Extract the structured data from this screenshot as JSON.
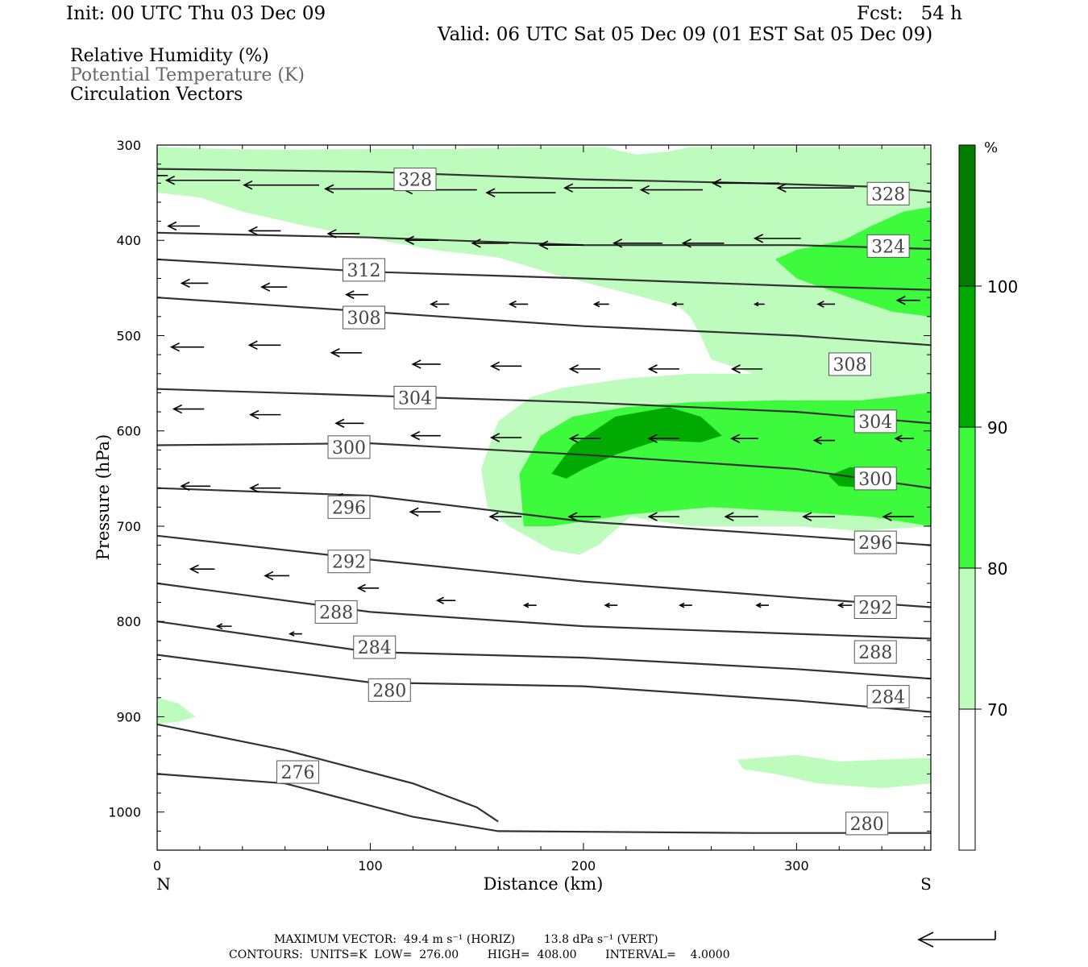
{
  "header": {
    "init": "Init: 00 UTC Thu 03 Dec 09",
    "fcst": "Fcst:   54 h",
    "valid": "Valid: 06 UTC Sat 05 Dec 09 (01 EST Sat 05 Dec 09)"
  },
  "fields": {
    "rh": "Relative Humidity (%)",
    "theta": "Potential Temperature (K)",
    "vectors": "Circulation Vectors"
  },
  "footer": {
    "max_vector": "MAXIMUM VECTOR:  49.4 m s⁻¹ (HORIZ)        13.8 dPa s⁻¹ (VERT)",
    "contours": "CONTOURS:  UNITS=K  LOW=  276.00        HIGH=  408.00        INTERVAL=    4.0000"
  },
  "colors": {
    "rh70": "#bdfcbd",
    "rh80": "#3dfa3d",
    "rh90": "#00aa00",
    "rh100": "#007c00",
    "contour": "#333333"
  },
  "chart_data": {
    "type": "contour",
    "xlabel": "Distance (km)",
    "ylabel": "Pressure (hPa)",
    "xlim": [
      0,
      363
    ],
    "ylim": [
      1040,
      300
    ],
    "x_ticks": [
      0,
      100,
      200,
      300
    ],
    "y_ticks": [
      300,
      400,
      500,
      600,
      700,
      800,
      900,
      1000
    ],
    "x_end_labels": {
      "left": "N",
      "right": "S"
    },
    "colorbar": {
      "unit": "%",
      "levels": [
        70,
        80,
        90,
        100
      ],
      "colors": [
        "#ffffff",
        "#bdfcbd",
        "#3dfa3d",
        "#00aa00",
        "#007c00"
      ]
    },
    "rh_regions": [
      {
        "level": 70,
        "points": [
          [
            0,
            302
          ],
          [
            30,
            304
          ],
          [
            60,
            305
          ],
          [
            100,
            304
          ],
          [
            140,
            304
          ],
          [
            170,
            302
          ],
          [
            210,
            302
          ],
          [
            215,
            305
          ],
          [
            225,
            310
          ],
          [
            240,
            307
          ],
          [
            250,
            302
          ],
          [
            363,
            302
          ],
          [
            363,
            700
          ],
          [
            330,
            705
          ],
          [
            300,
            700
          ],
          [
            250,
            700
          ],
          [
            222,
            690
          ],
          [
            207,
            720
          ],
          [
            198,
            730
          ],
          [
            185,
            725
          ],
          [
            165,
            700
          ],
          [
            155,
            680
          ],
          [
            152,
            640
          ],
          [
            160,
            590
          ],
          [
            175,
            565
          ],
          [
            190,
            555
          ],
          [
            220,
            545
          ],
          [
            250,
            540
          ],
          [
            280,
            540
          ],
          [
            260,
            525
          ],
          [
            255,
            500
          ],
          [
            250,
            480
          ],
          [
            245,
            470
          ],
          [
            220,
            455
          ],
          [
            190,
            438
          ],
          [
            160,
            418
          ],
          [
            130,
            410
          ],
          [
            100,
            398
          ],
          [
            70,
            385
          ],
          [
            40,
            370
          ],
          [
            20,
            355
          ],
          [
            0,
            350
          ]
        ]
      },
      {
        "level": 70,
        "points": [
          [
            0,
            880
          ],
          [
            10,
            886
          ],
          [
            18,
            900
          ],
          [
            10,
            905
          ],
          [
            0,
            908
          ]
        ]
      },
      {
        "level": 70,
        "points": [
          [
            272,
            945
          ],
          [
            300,
            940
          ],
          [
            320,
            947
          ],
          [
            340,
            945
          ],
          [
            363,
            943
          ],
          [
            363,
            970
          ],
          [
            340,
            975
          ],
          [
            310,
            970
          ],
          [
            290,
            960
          ],
          [
            275,
            955
          ]
        ]
      },
      {
        "level": 80,
        "points": [
          [
            363,
            365
          ],
          [
            350,
            370
          ],
          [
            335,
            385
          ],
          [
            322,
            400
          ],
          [
            300,
            410
          ],
          [
            290,
            420
          ],
          [
            300,
            440
          ],
          [
            325,
            460
          ],
          [
            345,
            475
          ],
          [
            363,
            480
          ]
        ]
      },
      {
        "level": 80,
        "points": [
          [
            170,
            645
          ],
          [
            180,
            605
          ],
          [
            195,
            585
          ],
          [
            220,
            575
          ],
          [
            250,
            570
          ],
          [
            290,
            568
          ],
          [
            330,
            568
          ],
          [
            363,
            560
          ],
          [
            363,
            700
          ],
          [
            335,
            690
          ],
          [
            300,
            685
          ],
          [
            260,
            680
          ],
          [
            220,
            688
          ],
          [
            200,
            695
          ],
          [
            185,
            700
          ],
          [
            172,
            700
          ]
        ]
      },
      {
        "level": 90,
        "points": [
          [
            185,
            645
          ],
          [
            195,
            615
          ],
          [
            215,
            585
          ],
          [
            240,
            575
          ],
          [
            255,
            585
          ],
          [
            265,
            605
          ],
          [
            255,
            612
          ],
          [
            235,
            610
          ],
          [
            215,
            625
          ],
          [
            200,
            640
          ],
          [
            192,
            650
          ]
        ]
      },
      {
        "level": 90,
        "points": [
          [
            315,
            647
          ],
          [
            325,
            638
          ],
          [
            340,
            640
          ],
          [
            347,
            650
          ],
          [
            335,
            660
          ],
          [
            320,
            658
          ]
        ]
      }
    ],
    "theta_lines": [
      {
        "level": 328,
        "points": [
          [
            0,
            325
          ],
          [
            100,
            328
          ],
          [
            200,
            336
          ],
          [
            280,
            340
          ],
          [
            340,
            344
          ],
          [
            363,
            349
          ]
        ]
      },
      {
        "level": 324,
        "points": [
          [
            0,
            392
          ],
          [
            100,
            397
          ],
          [
            200,
            405
          ],
          [
            300,
            405
          ],
          [
            363,
            409
          ]
        ]
      },
      {
        "level": 312,
        "points": [
          [
            0,
            420
          ],
          [
            100,
            433
          ],
          [
            200,
            440
          ],
          [
            300,
            448
          ],
          [
            363,
            452
          ]
        ]
      },
      {
        "level": 308,
        "points": [
          [
            0,
            460
          ],
          [
            100,
            475
          ],
          [
            200,
            490
          ],
          [
            300,
            500
          ],
          [
            363,
            510
          ]
        ]
      },
      {
        "level": 304,
        "points": [
          [
            0,
            556
          ],
          [
            100,
            563
          ],
          [
            200,
            570
          ],
          [
            300,
            580
          ],
          [
            363,
            592
          ]
        ]
      },
      {
        "level": 300,
        "points": [
          [
            0,
            615
          ],
          [
            100,
            613
          ],
          [
            200,
            625
          ],
          [
            300,
            640
          ],
          [
            363,
            660
          ]
        ]
      },
      {
        "level": 296,
        "points": [
          [
            0,
            660
          ],
          [
            100,
            668
          ],
          [
            200,
            695
          ],
          [
            300,
            710
          ],
          [
            363,
            720
          ]
        ]
      },
      {
        "level": 292,
        "points": [
          [
            0,
            710
          ],
          [
            100,
            735
          ],
          [
            200,
            758
          ],
          [
            300,
            775
          ],
          [
            363,
            785
          ]
        ]
      },
      {
        "level": 288,
        "points": [
          [
            0,
            760
          ],
          [
            100,
            790
          ],
          [
            200,
            805
          ],
          [
            300,
            813
          ],
          [
            363,
            818
          ]
        ]
      },
      {
        "level": 284,
        "points": [
          [
            0,
            800
          ],
          [
            100,
            832
          ],
          [
            200,
            838
          ],
          [
            300,
            850
          ],
          [
            363,
            860
          ]
        ]
      },
      {
        "level": 280,
        "points": [
          [
            0,
            835
          ],
          [
            100,
            864
          ],
          [
            200,
            868
          ],
          [
            300,
            883
          ],
          [
            363,
            895
          ]
        ]
      },
      {
        "level": 276,
        "points": [
          [
            0,
            908
          ],
          [
            60,
            935
          ],
          [
            120,
            970
          ],
          [
            150,
            995
          ],
          [
            160,
            1010
          ]
        ]
      },
      {
        "level": 280,
        "points": [
          [
            0,
            960
          ],
          [
            60,
            970
          ],
          [
            120,
            1005
          ],
          [
            160,
            1020
          ],
          [
            280,
            1022
          ],
          [
            363,
            1022
          ]
        ]
      }
    ],
    "contour_labels": [
      {
        "text": "328",
        "x": 121,
        "pressure": 336
      },
      {
        "text": "328",
        "x": 343,
        "pressure": 351
      },
      {
        "text": "324",
        "x": 343,
        "pressure": 406
      },
      {
        "text": "312",
        "x": 97,
        "pressure": 431
      },
      {
        "text": "308",
        "x": 97,
        "pressure": 481
      },
      {
        "text": "308",
        "x": 325,
        "pressure": 530
      },
      {
        "text": "304",
        "x": 121,
        "pressure": 565
      },
      {
        "text": "304",
        "x": 337,
        "pressure": 590
      },
      {
        "text": "300",
        "x": 90,
        "pressure": 617
      },
      {
        "text": "300",
        "x": 337,
        "pressure": 650
      },
      {
        "text": "296",
        "x": 90,
        "pressure": 680
      },
      {
        "text": "296",
        "x": 337,
        "pressure": 717
      },
      {
        "text": "292",
        "x": 90,
        "pressure": 737
      },
      {
        "text": "292",
        "x": 337,
        "pressure": 785
      },
      {
        "text": "288",
        "x": 84,
        "pressure": 790
      },
      {
        "text": "288",
        "x": 337,
        "pressure": 832
      },
      {
        "text": "284",
        "x": 102,
        "pressure": 827
      },
      {
        "text": "284",
        "x": 343,
        "pressure": 879
      },
      {
        "text": "280",
        "x": 109,
        "pressure": 872
      },
      {
        "text": "276",
        "x": 66,
        "pressure": 958
      },
      {
        "text": "280",
        "x": 333,
        "pressure": 1012
      }
    ],
    "vectors": [
      {
        "x": 5,
        "p": 332,
        "u": -6.3
      },
      {
        "x": 39,
        "p": 337,
        "u": -6.1
      },
      {
        "x": 76,
        "p": 342,
        "u": -6.2
      },
      {
        "x": 113,
        "p": 346,
        "u": -6.0
      },
      {
        "x": 150,
        "p": 347,
        "u": -6.0
      },
      {
        "x": 187,
        "p": 350,
        "u": -5.7
      },
      {
        "x": 223,
        "p": 345,
        "u": -5.6
      },
      {
        "x": 256,
        "p": 347,
        "u": -5.1
      },
      {
        "x": 292,
        "p": 340,
        "u": -5.5
      },
      {
        "x": 327,
        "p": 345,
        "u": -6.3
      },
      {
        "x": 20,
        "p": 385,
        "u": -2.6
      },
      {
        "x": 58,
        "p": 390,
        "u": -2.6
      },
      {
        "x": 95,
        "p": 393,
        "u": -2.6
      },
      {
        "x": 132,
        "p": 400,
        "u": -2.7
      },
      {
        "x": 165,
        "p": 403,
        "u": -3.0
      },
      {
        "x": 200,
        "p": 405,
        "u": -3.6
      },
      {
        "x": 237,
        "p": 403,
        "u": -4.0
      },
      {
        "x": 266,
        "p": 403,
        "u": -3.4
      },
      {
        "x": 302,
        "p": 398,
        "u": -3.8
      },
      {
        "x": 24,
        "p": 445,
        "u": -2.2
      },
      {
        "x": 61,
        "p": 449,
        "u": -2.1
      },
      {
        "x": 99,
        "p": 457,
        "u": -1.8
      },
      {
        "x": 137,
        "p": 467,
        "u": -1.5
      },
      {
        "x": 174,
        "p": 467,
        "u": -1.5
      },
      {
        "x": 212,
        "p": 467,
        "u": -1.2
      },
      {
        "x": 247,
        "p": 467,
        "u": -0.9
      },
      {
        "x": 285,
        "p": 467,
        "u": -0.8
      },
      {
        "x": 318,
        "p": 467,
        "u": -1.4
      },
      {
        "x": 358,
        "p": 463,
        "u": -1.9
      },
      {
        "x": 22,
        "p": 512,
        "u": -2.7
      },
      {
        "x": 58,
        "p": 510,
        "u": -2.6
      },
      {
        "x": 96,
        "p": 518,
        "u": -2.5
      },
      {
        "x": 133,
        "p": 530,
        "u": -2.3
      },
      {
        "x": 171,
        "p": 532,
        "u": -2.5
      },
      {
        "x": 208,
        "p": 535,
        "u": -2.5
      },
      {
        "x": 245,
        "p": 535,
        "u": -2.5
      },
      {
        "x": 284,
        "p": 535,
        "u": -2.5
      },
      {
        "x": 22,
        "p": 577,
        "u": -2.5
      },
      {
        "x": 58,
        "p": 583,
        "u": -2.5
      },
      {
        "x": 97,
        "p": 592,
        "u": -2.3
      },
      {
        "x": 133,
        "p": 605,
        "u": -2.4
      },
      {
        "x": 171,
        "p": 607,
        "u": -2.5
      },
      {
        "x": 208,
        "p": 608,
        "u": -2.5
      },
      {
        "x": 245,
        "p": 608,
        "u": -2.5
      },
      {
        "x": 282,
        "p": 608,
        "u": -2.2
      },
      {
        "x": 318,
        "p": 610,
        "u": -1.7
      },
      {
        "x": 355,
        "p": 608,
        "u": -1.5
      },
      {
        "x": 25,
        "p": 658,
        "u": -2.4
      },
      {
        "x": 58,
        "p": 660,
        "u": -2.5
      },
      {
        "x": 97,
        "p": 670,
        "u": -2.4
      },
      {
        "x": 133,
        "p": 685,
        "u": -2.5
      },
      {
        "x": 171,
        "p": 690,
        "u": -2.6
      },
      {
        "x": 208,
        "p": 690,
        "u": -2.6
      },
      {
        "x": 245,
        "p": 690,
        "u": -2.5
      },
      {
        "x": 282,
        "p": 690,
        "u": -2.7
      },
      {
        "x": 318,
        "p": 690,
        "u": -2.6
      },
      {
        "x": 355,
        "p": 690,
        "u": -2.5
      },
      {
        "x": 27,
        "p": 745,
        "u": -2.0
      },
      {
        "x": 62,
        "p": 752,
        "u": -2.0
      },
      {
        "x": 104,
        "p": 765,
        "u": -1.7
      },
      {
        "x": 140,
        "p": 778,
        "u": -1.5
      },
      {
        "x": 178,
        "p": 783,
        "u": -1.0
      },
      {
        "x": 216,
        "p": 783,
        "u": -1.0
      },
      {
        "x": 251,
        "p": 783,
        "u": -1.0
      },
      {
        "x": 287,
        "p": 783,
        "u": -1.0
      },
      {
        "x": 326,
        "p": 783,
        "u": -1.1
      },
      {
        "x": 35,
        "p": 805,
        "u": -1.2
      },
      {
        "x": 68,
        "p": 813,
        "u": -1.0
      }
    ],
    "reference_vector": {
      "horizontal": "49.4 m s⁻¹",
      "vertical": "13.8 dPa s⁻¹"
    }
  }
}
